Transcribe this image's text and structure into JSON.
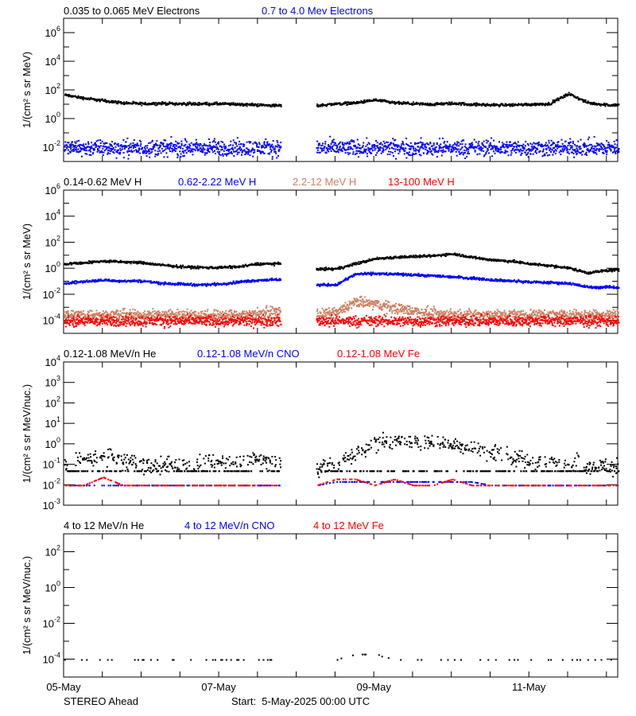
{
  "colors": {
    "black": "#000000",
    "blue": "#0000ff",
    "brown": "#cd8062",
    "red": "#ff0000"
  },
  "footer": {
    "spacecraft": "STEREO Ahead",
    "start": "Start:  5-May-2025 00:00 UTC"
  },
  "chart_data": [
    {
      "type": "scatter",
      "ylabel": "1/(cm² s sr MeV)",
      "yscale": "log",
      "ylim": [
        0.001,
        10000000.0
      ],
      "ytick_exponents": [
        -2,
        0,
        2,
        4,
        6
      ],
      "xlim": [
        "2025-05-05 00:00",
        "2025-05-12 03:30"
      ],
      "xtick_labels": [
        "05-May",
        "07-May",
        "09-May",
        "11-May"
      ],
      "x": [
        "2025-05-05 00:00",
        "2025-05-05 06:00",
        "2025-05-05 12:00",
        "2025-05-05 18:00",
        "2025-05-06 00:00",
        "2025-05-06 06:00",
        "2025-05-06 12:00",
        "2025-05-06 18:00",
        "2025-05-07 00:00",
        "2025-05-07 06:00",
        "2025-05-07 12:00",
        "2025-05-07 18:00",
        "2025-05-08 00:00",
        "2025-05-08 06:00",
        "2025-05-08 12:00",
        "2025-05-08 18:00",
        "2025-05-09 00:00",
        "2025-05-09 06:00",
        "2025-05-09 12:00",
        "2025-05-09 18:00",
        "2025-05-10 00:00",
        "2025-05-10 06:00",
        "2025-05-10 12:00",
        "2025-05-10 18:00",
        "2025-05-11 00:00",
        "2025-05-11 06:00",
        "2025-05-11 12:00",
        "2025-05-11 18:00",
        "2025-05-12 00:00"
      ],
      "series": [
        {
          "name": "0.035 to 0.065 MeV Electrons",
          "color": "#000000",
          "values": [
            50,
            30,
            20,
            14,
            12,
            13,
            12,
            12,
            12,
            11,
            10,
            9,
            null,
            9,
            12,
            14,
            22,
            14,
            12,
            11,
            13,
            11,
            10,
            10,
            11,
            12,
            60,
            14,
            10
          ]
        },
        {
          "name": "0.7 to 4.0 Mev Electrons",
          "color": "#0000ff",
          "values": [
            0.01,
            0.01,
            0.01,
            0.01,
            0.01,
            0.01,
            0.01,
            0.01,
            0.01,
            0.01,
            0.01,
            0.01,
            null,
            0.01,
            0.01,
            0.01,
            0.01,
            0.01,
            0.01,
            0.01,
            0.01,
            0.01,
            0.01,
            0.01,
            0.01,
            0.01,
            0.01,
            0.01,
            0.01
          ]
        }
      ]
    },
    {
      "type": "scatter",
      "ylabel": "1/(cm² s sr MeV)",
      "yscale": "log",
      "ylim": [
        1e-05,
        1000000.0
      ],
      "ytick_exponents": [
        -4,
        -2,
        0,
        2,
        4,
        6
      ],
      "xlim": [
        "2025-05-05 00:00",
        "2025-05-12 03:30"
      ],
      "series": [
        {
          "name": "0.14-0.62 MeV H",
          "color": "#000000",
          "values": [
            2.5,
            3,
            4,
            3.5,
            3,
            2,
            1.5,
            1.3,
            1.3,
            1.5,
            2.5,
            2.5,
            null,
            1.0,
            1.0,
            2.5,
            6,
            8,
            9,
            10,
            15,
            8,
            5,
            4,
            2.5,
            1.8,
            1.2,
            0.5,
            0.8
          ]
        },
        {
          "name": "0.62-2.22 MeV H",
          "color": "#0000ff",
          "values": [
            0.08,
            0.11,
            0.14,
            0.12,
            0.12,
            0.08,
            0.07,
            0.06,
            0.07,
            0.1,
            0.14,
            0.15,
            null,
            0.06,
            0.06,
            0.4,
            0.45,
            0.4,
            0.35,
            0.3,
            0.25,
            0.2,
            0.15,
            0.12,
            0.1,
            0.09,
            0.08,
            0.04,
            0.04
          ]
        },
        {
          "name": "2.2-12 MeV H",
          "color": "#cd8062",
          "values": [
            0.0003,
            0.0003,
            0.0003,
            0.0003,
            0.0003,
            0.0003,
            0.0003,
            0.0003,
            0.0003,
            0.0003,
            0.0004,
            0.0005,
            null,
            0.0003,
            0.0004,
            0.003,
            0.002,
            0.001,
            0.0006,
            0.0004,
            0.0003,
            0.0003,
            0.0003,
            0.0003,
            0.0003,
            0.0003,
            0.0003,
            0.0003,
            0.0003
          ]
        },
        {
          "name": "13-100 MeV H",
          "color": "#ff0000",
          "values": [
            0.0001,
            0.0001,
            0.0001,
            0.0001,
            0.0001,
            0.0001,
            0.0001,
            0.0001,
            0.0001,
            0.0001,
            0.0001,
            0.0001,
            null,
            0.0001,
            0.0001,
            0.0001,
            0.0001,
            0.0001,
            0.0001,
            0.0001,
            0.0001,
            0.0001,
            0.0001,
            0.0001,
            0.0001,
            0.0001,
            0.0001,
            0.0001,
            0.0001
          ]
        }
      ]
    },
    {
      "type": "scatter",
      "ylabel": "1/(cm² s sr MeV/nuc.)",
      "yscale": "log",
      "ylim": [
        0.001,
        10000.0
      ],
      "ytick_exponents": [
        -3,
        -2,
        -1,
        0,
        1,
        2,
        3,
        4
      ],
      "xlim": [
        "2025-05-05 00:00",
        "2025-05-12 03:30"
      ],
      "series": [
        {
          "name": "0.12-1.08 MeV/n He",
          "color": "#000000",
          "values": [
            0.12,
            0.2,
            0.25,
            0.15,
            0.12,
            0.1,
            0.1,
            0.1,
            0.12,
            0.15,
            0.2,
            0.15,
            null,
            0.08,
            0.1,
            0.4,
            1.2,
            1.5,
            1.3,
            1.2,
            1.0,
            0.7,
            0.4,
            0.25,
            0.15,
            0.12,
            0.12,
            0.1,
            0.08
          ]
        },
        {
          "name": "0.12-1.08 MeV/n CNO",
          "color": "#0000ff",
          "values": [
            0.01,
            0.01,
            0.01,
            0.01,
            0.01,
            0.01,
            0.01,
            0.01,
            0.01,
            0.01,
            0.01,
            0.01,
            null,
            0.01,
            0.015,
            0.015,
            0.015,
            0.015,
            0.015,
            0.015,
            0.015,
            0.015,
            0.01,
            0.01,
            0.01,
            0.01,
            0.01,
            0.01,
            0.01
          ]
        },
        {
          "name": "0.12-1.08 MeV Fe",
          "color": "#ff0000",
          "values": [
            0.01,
            0.01,
            0.025,
            0.01,
            0.01,
            0.01,
            0.01,
            0.01,
            0.01,
            0.01,
            0.01,
            0.01,
            null,
            0.01,
            0.02,
            0.02,
            0.01,
            0.02,
            0.01,
            0.01,
            0.02,
            0.01,
            0.01,
            0.01,
            0.01,
            0.01,
            0.01,
            0.01,
            0.01
          ]
        }
      ]
    },
    {
      "type": "scatter",
      "ylabel": "1/(cm² s sr MeV/nuc.)",
      "yscale": "log",
      "ylim": [
        1e-05,
        1000.0
      ],
      "ytick_exponents": [
        -4,
        -2,
        0,
        2
      ],
      "xlim": [
        "2025-05-05 00:00",
        "2025-05-12 03:30"
      ],
      "series": [
        {
          "name": "4 to 12 MeV/n He",
          "color": "#000000",
          "values": [
            0.0001,
            0.0001,
            0.0001,
            0.0001,
            0.0001,
            0.0001,
            0.0001,
            0.0001,
            0.0001,
            0.0001,
            0.0001,
            0.0001,
            0.0001,
            0.0001,
            0.0001,
            0.0002,
            0.0002,
            0.0001,
            0.0001,
            0.0001,
            0.0001,
            0.0001,
            0.0001,
            0.0001,
            0.0001,
            0.0001,
            0.0001,
            0.0001,
            0.0001
          ]
        },
        {
          "name": "4 to 12 MeV/n CNO",
          "color": "#0000ff",
          "values": [
            null,
            null,
            null,
            null,
            null,
            null,
            null,
            null,
            null,
            0.0001,
            null,
            null,
            null,
            null,
            null,
            null,
            null,
            null,
            null,
            null,
            null,
            null,
            null,
            null,
            null,
            null,
            null,
            null,
            null
          ]
        },
        {
          "name": "4 to 12 MeV Fe",
          "color": "#ff0000",
          "values": [
            null,
            null,
            null,
            null,
            null,
            null,
            null,
            null,
            null,
            null,
            null,
            null,
            null,
            null,
            null,
            null,
            null,
            null,
            null,
            null,
            null,
            null,
            null,
            null,
            null,
            null,
            null,
            null,
            null
          ]
        }
      ]
    }
  ]
}
